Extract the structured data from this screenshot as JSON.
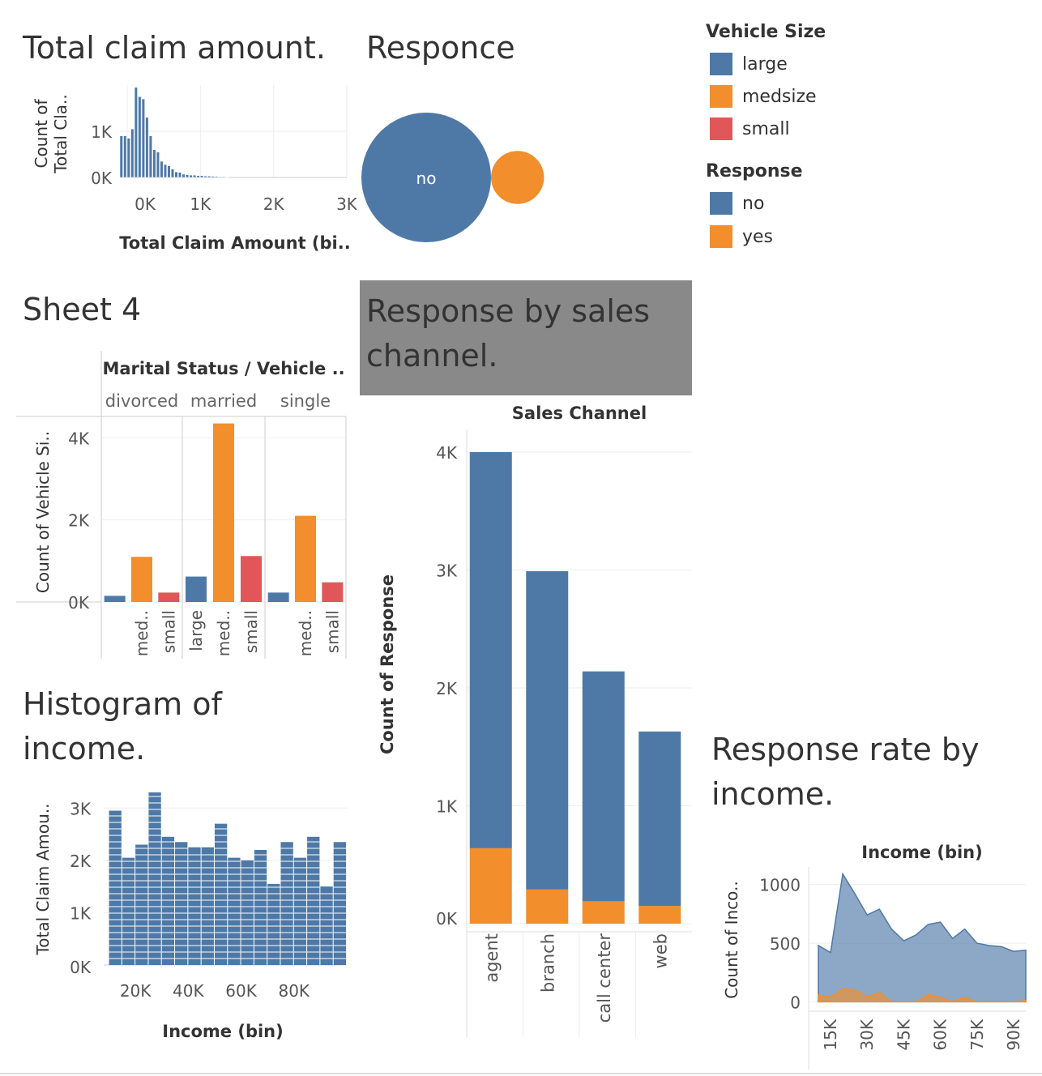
{
  "colors": {
    "large": "#4e79a7",
    "medsize": "#f28e2b",
    "small": "#e15759",
    "no": "#4e79a7",
    "yes": "#f28e2b"
  },
  "titles": {
    "total_claim": "Total claim amount.",
    "responce": "Responce",
    "sheet4": "Sheet 4",
    "sales_channel": "Response by sales channel.",
    "histogram_income": "Histogram of income.",
    "rate_income": "Response rate by income."
  },
  "legend": {
    "vehicle_size_title": "Vehicle Size",
    "vehicle_size_items": [
      "large",
      "medsize",
      "small"
    ],
    "response_title": "Response",
    "response_items": [
      "no",
      "yes"
    ]
  },
  "chart_data": [
    {
      "id": "total_claim_hist",
      "type": "bar",
      "xlabel": "Total Claim Amount (bi..",
      "ylabel": "Count of Total Cla..",
      "x_ticks": [
        "0K",
        "1K",
        "2K",
        "3K"
      ],
      "y_ticks": [
        "0K",
        "1K"
      ],
      "xlim": [
        -100,
        3000
      ],
      "ylim": [
        0,
        2000
      ],
      "bin_width": 50,
      "x": [
        -100,
        -50,
        0,
        50,
        100,
        150,
        200,
        250,
        300,
        350,
        400,
        450,
        500,
        550,
        600,
        650,
        700,
        750,
        800,
        850,
        900,
        950,
        1000,
        1050,
        1100,
        1150,
        1200,
        1250,
        1300,
        1350
      ],
      "values": [
        900,
        900,
        850,
        1050,
        1950,
        1750,
        1700,
        1300,
        900,
        600,
        550,
        350,
        280,
        250,
        180,
        120,
        110,
        70,
        60,
        50,
        50,
        40,
        40,
        30,
        30,
        25,
        20,
        15,
        15,
        10
      ]
    },
    {
      "id": "responce_bubbles",
      "type": "scatter",
      "series": [
        {
          "name": "no",
          "label": "no",
          "values": [
            7826
          ]
        },
        {
          "name": "yes",
          "label": "",
          "values": [
            1308
          ]
        }
      ]
    },
    {
      "id": "sheet4",
      "type": "bar",
      "header": "Marital Status  /  Vehicle ..",
      "ylabel": "Count of Vehicle Si..",
      "y_ticks": [
        "0K",
        "2K",
        "4K"
      ],
      "ylim": [
        0,
        4500
      ],
      "groups": [
        {
          "name": "divorced",
          "bars": [
            {
              "size": "large",
              "label": "",
              "value": 150
            },
            {
              "size": "medsize",
              "label": "med..",
              "value": 1100
            },
            {
              "size": "small",
              "label": "small",
              "value": 230
            }
          ]
        },
        {
          "name": "married",
          "bars": [
            {
              "size": "large",
              "label": "large",
              "value": 620
            },
            {
              "size": "medsize",
              "label": "med..",
              "value": 4350
            },
            {
              "size": "small",
              "label": "small",
              "value": 1120
            }
          ]
        },
        {
          "name": "single",
          "bars": [
            {
              "size": "large",
              "label": "",
              "value": 230
            },
            {
              "size": "medsize",
              "label": "med..",
              "value": 2100
            },
            {
              "size": "small",
              "label": "small",
              "value": 480
            }
          ]
        }
      ]
    },
    {
      "id": "sales_channel",
      "type": "bar",
      "header": "Sales Channel",
      "ylabel": "Count of Response",
      "y_ticks": [
        "0K",
        "1K",
        "2K",
        "3K",
        "4K"
      ],
      "ylim": [
        0,
        4000
      ],
      "categories": [
        "agent",
        "branch",
        "call center",
        "web"
      ],
      "series": [
        {
          "name": "no",
          "values": [
            3360,
            2700,
            1950,
            1480
          ]
        },
        {
          "name": "yes",
          "values": [
            640,
            290,
            190,
            150
          ]
        }
      ]
    },
    {
      "id": "income_hist",
      "type": "bar",
      "xlabel": "Income (bin)",
      "ylabel": "Total Claim Amou..",
      "x_ticks": [
        "20K",
        "40K",
        "60K",
        "80K"
      ],
      "y_ticks": [
        "0K",
        "1K",
        "2K",
        "3K"
      ],
      "xlim": [
        8000,
        100000
      ],
      "ylim": [
        0,
        3500
      ],
      "bin_width": 5000,
      "x": [
        10000,
        15000,
        20000,
        25000,
        30000,
        35000,
        40000,
        45000,
        50000,
        55000,
        60000,
        65000,
        70000,
        75000,
        80000,
        85000,
        90000,
        95000
      ],
      "values": [
        2950,
        2050,
        2300,
        3300,
        2450,
        2350,
        2250,
        2250,
        2700,
        2050,
        2000,
        2200,
        1550,
        2350,
        2050,
        2450,
        1500,
        2350
      ]
    },
    {
      "id": "rate_by_income",
      "type": "area",
      "header": "Income (bin)",
      "ylabel": "Count of Inco..",
      "x_ticks": [
        "15K",
        "30K",
        "45K",
        "60K",
        "75K",
        "90K"
      ],
      "y_ticks": [
        "0",
        "500",
        "1000"
      ],
      "xlim": [
        10000,
        95000
      ],
      "ylim": [
        -80,
        1150
      ],
      "x": [
        10000,
        15000,
        20000,
        25000,
        30000,
        35000,
        40000,
        45000,
        50000,
        55000,
        60000,
        65000,
        70000,
        75000,
        80000,
        85000,
        90000,
        95000
      ],
      "series": [
        {
          "name": "no",
          "values": [
            420,
            380,
            980,
            820,
            700,
            710,
            620,
            520,
            570,
            600,
            640,
            540,
            580,
            500,
            480,
            470,
            430,
            430
          ]
        },
        {
          "name": "yes",
          "values": [
            60,
            40,
            110,
            100,
            40,
            80,
            0,
            0,
            0,
            60,
            40,
            0,
            40,
            0,
            0,
            0,
            0,
            10
          ]
        }
      ]
    }
  ]
}
